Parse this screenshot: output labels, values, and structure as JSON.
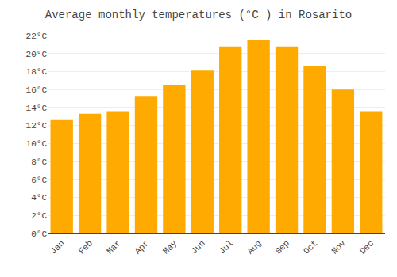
{
  "chart_data": {
    "type": "bar",
    "title": "Average monthly temperatures (°C ) in Rosarito",
    "categories": [
      "Jan",
      "Feb",
      "Mar",
      "Apr",
      "May",
      "Jun",
      "Jul",
      "Aug",
      "Sep",
      "Oct",
      "Nov",
      "Dec"
    ],
    "values": [
      12.7,
      13.3,
      13.6,
      15.3,
      16.5,
      18.1,
      20.8,
      21.5,
      20.8,
      18.6,
      16.0,
      13.6
    ],
    "color": "#FFAA00",
    "ylim": [
      0,
      22
    ],
    "yticks": [
      {
        "value": 0,
        "label": "0°C"
      },
      {
        "value": 2,
        "label": "2°C"
      },
      {
        "value": 4,
        "label": "4°C"
      },
      {
        "value": 6,
        "label": "6°C"
      },
      {
        "value": 8,
        "label": "8°C"
      },
      {
        "value": 10,
        "label": "10°C"
      },
      {
        "value": 12,
        "label": "12°C"
      },
      {
        "value": 14,
        "label": "14°C"
      },
      {
        "value": 16,
        "label": "16°C"
      },
      {
        "value": 18,
        "label": "18°C"
      },
      {
        "value": 20,
        "label": "20°C"
      },
      {
        "value": 22,
        "label": "22°C"
      }
    ],
    "grid": true
  }
}
